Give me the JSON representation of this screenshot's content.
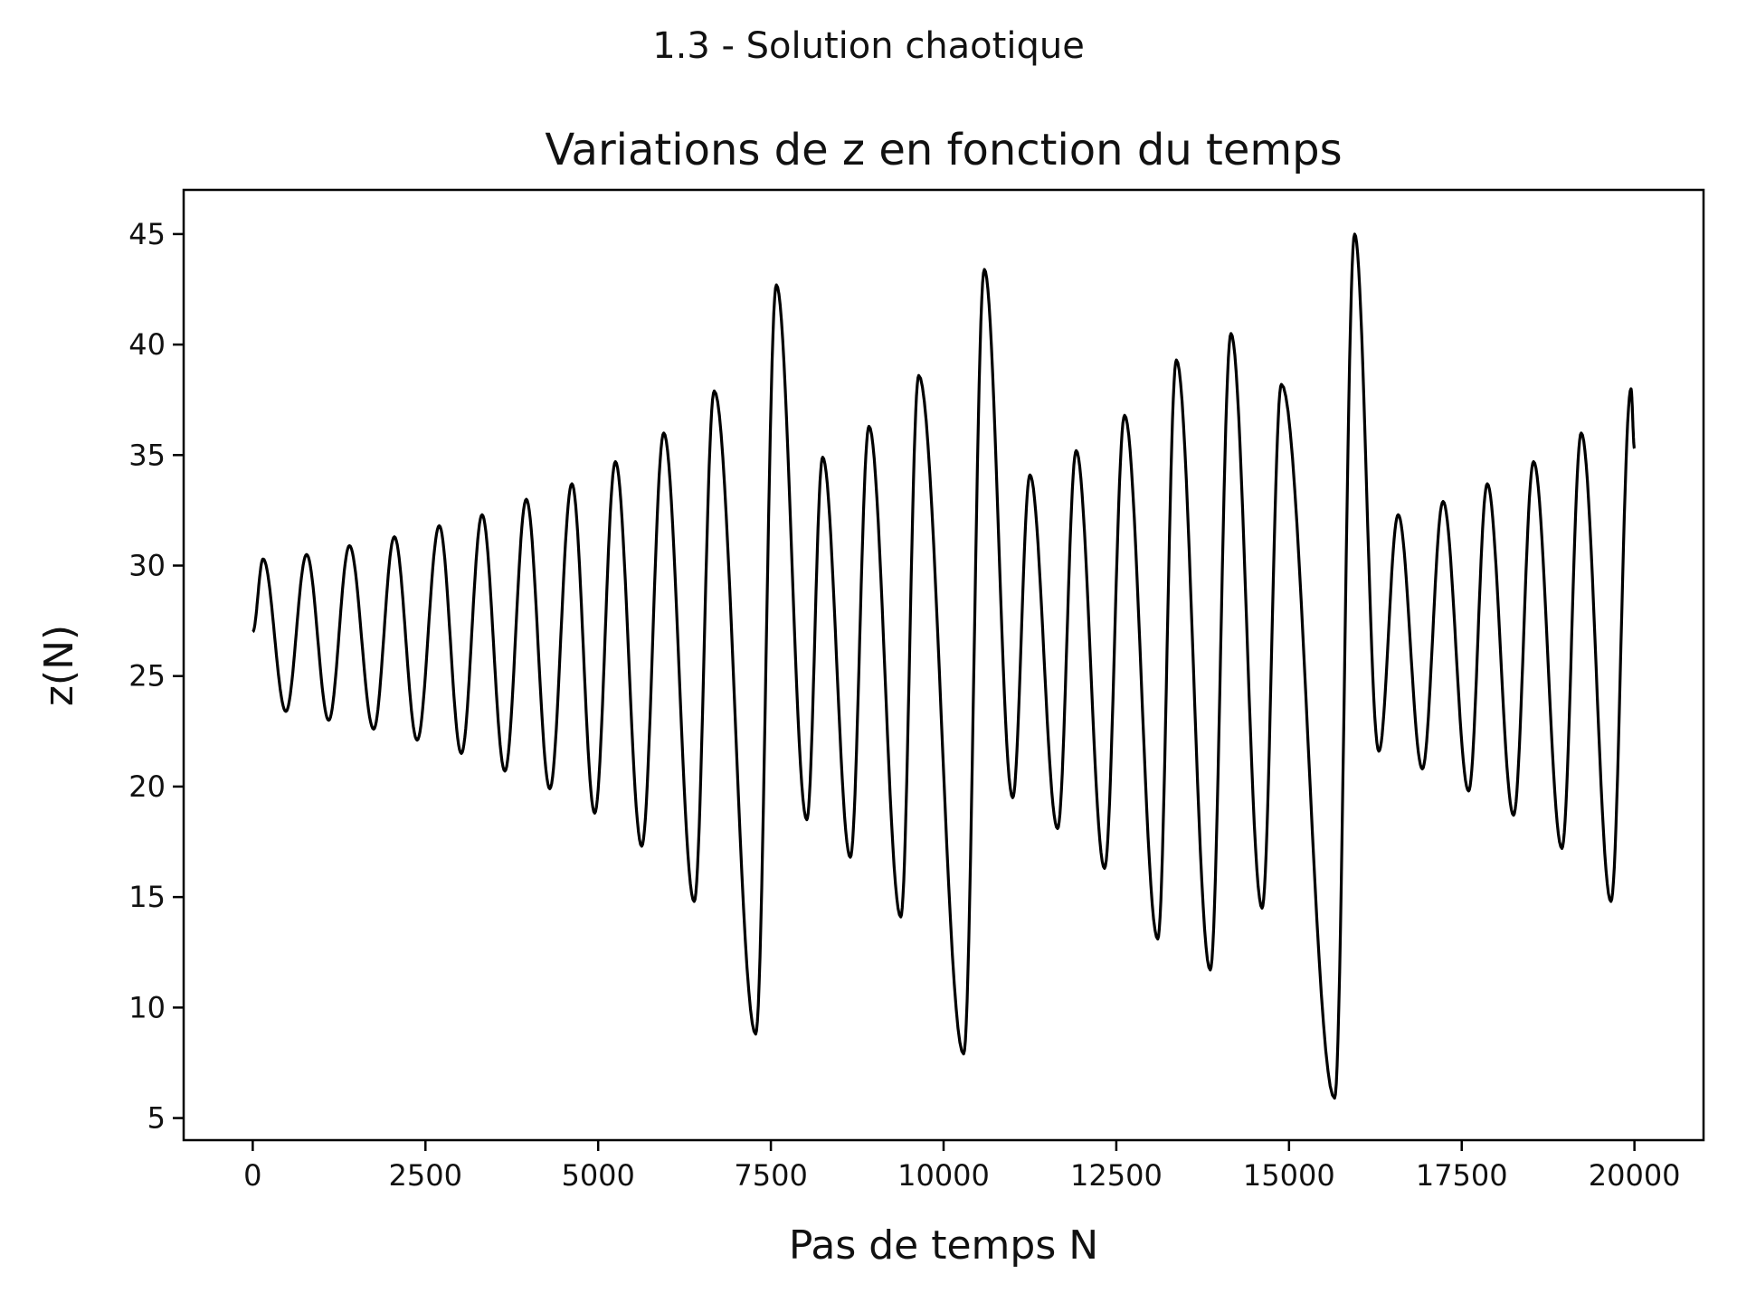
{
  "figure": {
    "suptitle": "1.3 - Solution chaotique"
  },
  "chart_data": {
    "type": "line",
    "title": "Variations de z en fonction du temps",
    "xlabel": "Pas de temps N",
    "ylabel": "z(N)",
    "xlim": [
      -1000,
      21000
    ],
    "ylim": [
      4,
      47
    ],
    "xticks": [
      0,
      2500,
      5000,
      7500,
      10000,
      12500,
      15000,
      17500,
      20000
    ],
    "yticks": [
      5,
      10,
      15,
      20,
      25,
      30,
      35,
      40,
      45
    ],
    "grid": false,
    "line_color": "#000000",
    "series": [
      {
        "x": [
          0,
          150,
          480,
          780,
          1100,
          1400,
          1750,
          2050,
          2380,
          2700,
          3020,
          3320,
          3650,
          3960,
          4300,
          4620,
          4950,
          5250,
          5630,
          5950,
          6390,
          6680,
          7280,
          7580,
          8020,
          8250,
          8650,
          8920,
          9380,
          9640,
          10290,
          10590,
          11000,
          11250,
          11650,
          11920,
          12330,
          12620,
          13100,
          13370,
          13860,
          14160,
          14610,
          14890,
          15660,
          15950,
          16300,
          16580,
          16930,
          17230,
          17600,
          17870,
          18250,
          18540,
          18950,
          19230,
          19660,
          19950,
          20000
        ],
        "y": [
          27,
          30.3,
          23.4,
          30.5,
          23.0,
          30.9,
          22.6,
          31.3,
          22.1,
          31.8,
          21.5,
          32.3,
          20.7,
          33.0,
          19.9,
          33.7,
          18.8,
          34.7,
          17.3,
          36.0,
          14.8,
          37.9,
          8.8,
          42.7,
          18.5,
          34.9,
          16.8,
          36.3,
          14.1,
          38.6,
          7.9,
          43.4,
          19.5,
          34.1,
          18.1,
          35.2,
          16.3,
          36.8,
          13.1,
          39.3,
          11.7,
          40.5,
          14.5,
          38.2,
          5.9,
          45.0,
          21.6,
          32.3,
          20.8,
          32.9,
          19.8,
          33.7,
          18.7,
          34.7,
          17.2,
          36.0,
          14.8,
          38.0,
          35.3
        ]
      }
    ]
  }
}
